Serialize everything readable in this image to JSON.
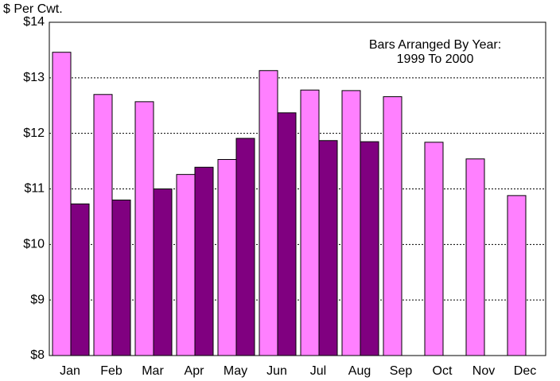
{
  "chart_data": {
    "type": "bar",
    "y_axis_label": "$ Per Cwt.",
    "annotation": [
      "Bars Arranged By Year:",
      "1999 To 2000"
    ],
    "categories": [
      "Jan",
      "Feb",
      "Mar",
      "Apr",
      "May",
      "Jun",
      "Jul",
      "Aug",
      "Sep",
      "Oct",
      "Nov",
      "Dec"
    ],
    "series": [
      {
        "color": "#ff80ff",
        "values": [
          13.46,
          12.7,
          12.57,
          11.26,
          11.53,
          13.13,
          12.78,
          12.77,
          12.66,
          11.84,
          11.54,
          10.88
        ]
      },
      {
        "color": "#800080",
        "values": [
          10.73,
          10.8,
          11.0,
          11.39,
          11.91,
          12.37,
          11.87,
          11.85,
          null,
          null,
          null,
          null
        ]
      }
    ],
    "ylim": [
      8,
      14
    ],
    "yticks": [
      {
        "value": 8,
        "label": "$8"
      },
      {
        "value": 9,
        "label": "$9"
      },
      {
        "value": 10,
        "label": "$10"
      },
      {
        "value": 11,
        "label": "$11"
      },
      {
        "value": 12,
        "label": "$12"
      },
      {
        "value": 13,
        "label": "$13"
      },
      {
        "value": 14,
        "label": "$14"
      }
    ],
    "grid": true
  }
}
